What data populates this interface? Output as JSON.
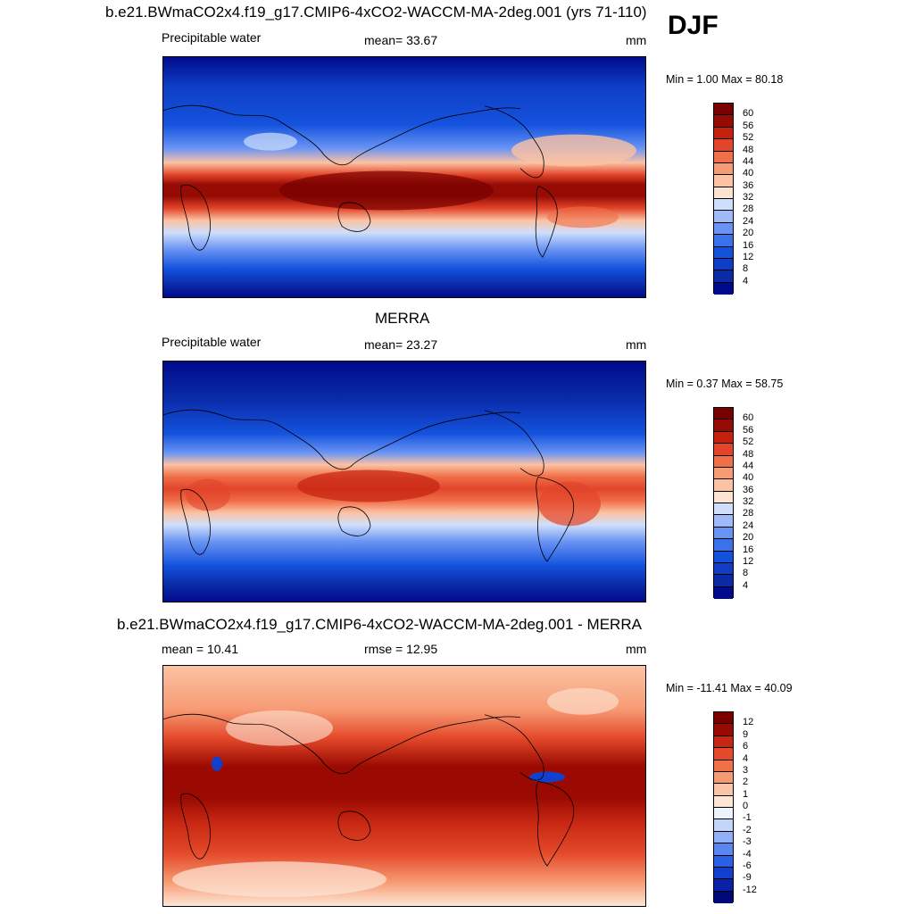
{
  "season": "DJF",
  "colors": {
    "abs_scale": [
      "#000a8c",
      "#0a2aa8",
      "#0f3ec4",
      "#1452dd",
      "#3a72ec",
      "#6a94f4",
      "#9fbaf8",
      "#cfdffb",
      "#fde3d0",
      "#fbc2a3",
      "#f79b75",
      "#f06e48",
      "#e2452a",
      "#c4220f",
      "#960c04",
      "#780000"
    ],
    "diff_scale": [
      "#00087a",
      "#0a22a8",
      "#1040cc",
      "#2a60e8",
      "#5a86f2",
      "#8fb0f6",
      "#c3d5fa",
      "#eef4fe",
      "#fde6d6",
      "#fbc4a8",
      "#f79a72",
      "#f07048",
      "#e4492a",
      "#c72612",
      "#9a0a02",
      "#7a0000"
    ],
    "coast": "#000000"
  },
  "panels": [
    {
      "title": "b.e21.BWmaCO2x4.f19_g17.CMIP6-4xCO2-WACCM-MA-2deg.001 (yrs 71-110)",
      "left_label": "Precipitable water",
      "center_label": "mean=  33.67",
      "right_label": "mm",
      "minmax": "Min =   1.00 Max =  80.18",
      "scale": "abs",
      "ticks": [
        "60",
        "56",
        "52",
        "48",
        "44",
        "40",
        "36",
        "32",
        "28",
        "24",
        "20",
        "16",
        "12",
        "8",
        "4"
      ]
    },
    {
      "title": "MERRA",
      "left_label": "Precipitable water",
      "center_label": "mean=  23.27",
      "right_label": "mm",
      "minmax": "Min =   0.37 Max =  58.75",
      "scale": "abs",
      "ticks": [
        "60",
        "56",
        "52",
        "48",
        "44",
        "40",
        "36",
        "32",
        "28",
        "24",
        "20",
        "16",
        "12",
        "8",
        "4"
      ]
    },
    {
      "title": "b.e21.BWmaCO2x4.f19_g17.CMIP6-4xCO2-WACCM-MA-2deg.001 - MERRA",
      "left_label": "mean =  10.41",
      "center_label": "rmse =  12.95",
      "right_label": "mm",
      "minmax": "Min = -11.41 Max =  40.09",
      "scale": "diff",
      "ticks": [
        "12",
        "9",
        "6",
        "4",
        "3",
        "2",
        "1",
        "0",
        "-1",
        "-2",
        "-3",
        "-4",
        "-6",
        "-9",
        "-12"
      ]
    }
  ]
}
